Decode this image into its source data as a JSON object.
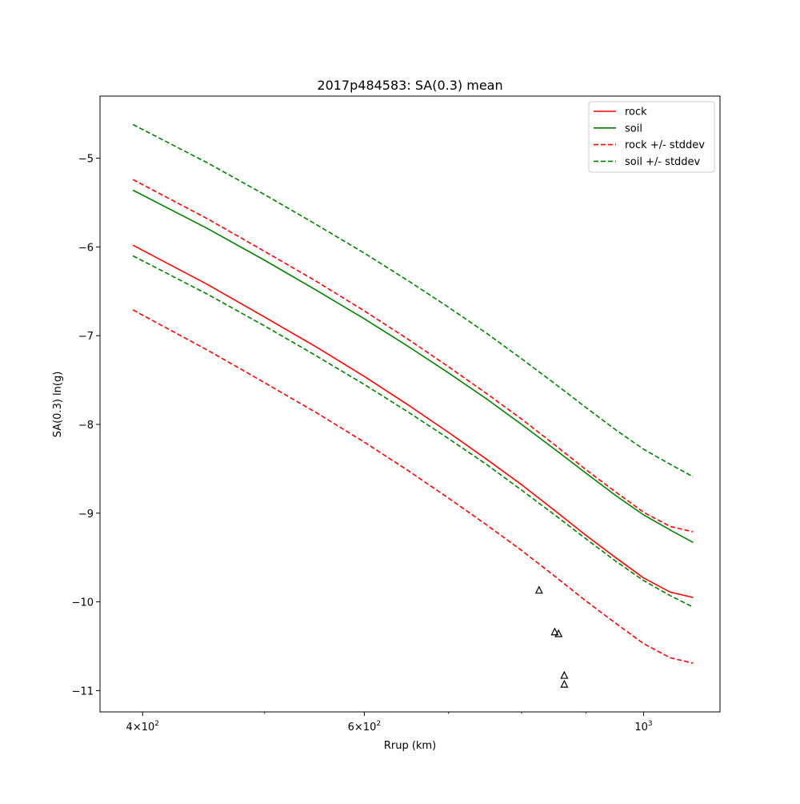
{
  "chart_data": {
    "type": "line",
    "title": "2017p484583: SA(0.3) mean",
    "xlabel": "Rrup (km)",
    "ylabel": "SA(0.3) ln(g)",
    "xscale": "log",
    "xlim": [
      370,
      1150
    ],
    "ylim": [
      -11.24,
      -4.3
    ],
    "grid": false,
    "legend_placement": "upper right",
    "x_major_ticks": [
      {
        "value": 400,
        "base": "4×10",
        "exp": "2"
      },
      {
        "value": 600,
        "base": "6×10",
        "exp": "2"
      },
      {
        "value": 1000,
        "base": "10",
        "exp": "3"
      }
    ],
    "x_minor_ticks": [
      500,
      700,
      800,
      900
    ],
    "y_ticks": [
      {
        "value": -11,
        "label": "−11"
      },
      {
        "value": -10,
        "label": "−10"
      },
      {
        "value": -9,
        "label": "−9"
      },
      {
        "value": -8,
        "label": "−8"
      },
      {
        "value": -7,
        "label": "−7"
      },
      {
        "value": -6,
        "label": "−6"
      },
      {
        "value": -5,
        "label": "−5"
      }
    ],
    "x": [
      393,
      450,
      500,
      550,
      600,
      650,
      700,
      750,
      800,
      850,
      900,
      950,
      1000,
      1050,
      1095
    ],
    "series": [
      {
        "name": "rock",
        "color": "#ff0000",
        "dash": "solid",
        "role": "mean",
        "values": [
          -5.98,
          -6.42,
          -6.79,
          -7.13,
          -7.46,
          -7.78,
          -8.09,
          -8.39,
          -8.68,
          -8.97,
          -9.25,
          -9.5,
          -9.73,
          -9.89,
          -9.95
        ]
      },
      {
        "name": "soil",
        "color": "#008000",
        "dash": "solid",
        "role": "mean",
        "values": [
          -5.36,
          -5.79,
          -6.15,
          -6.49,
          -6.81,
          -7.12,
          -7.42,
          -7.71,
          -8.0,
          -8.28,
          -8.55,
          -8.8,
          -9.02,
          -9.19,
          -9.33
        ]
      },
      {
        "name": "rock +/- stddev",
        "color": "#ff0000",
        "dash": "dashed",
        "role": "plus",
        "values": [
          -5.24,
          -5.68,
          -6.05,
          -6.39,
          -6.72,
          -7.04,
          -7.35,
          -7.65,
          -7.94,
          -8.23,
          -8.51,
          -8.76,
          -8.99,
          -9.15,
          -9.21
        ]
      },
      {
        "name": "",
        "color": "#ff0000",
        "dash": "dashed",
        "role": "minus",
        "values": [
          -6.71,
          -7.16,
          -7.53,
          -7.87,
          -8.2,
          -8.52,
          -8.83,
          -9.13,
          -9.42,
          -9.71,
          -9.99,
          -10.24,
          -10.47,
          -10.63,
          -10.69
        ]
      },
      {
        "name": "soil +/- stddev",
        "color": "#008000",
        "dash": "dashed",
        "role": "plus",
        "values": [
          -4.62,
          -5.05,
          -5.41,
          -5.75,
          -6.07,
          -6.38,
          -6.68,
          -6.97,
          -7.26,
          -7.54,
          -7.81,
          -8.06,
          -8.28,
          -8.45,
          -8.59
        ]
      },
      {
        "name": "",
        "color": "#008000",
        "dash": "dashed",
        "role": "minus",
        "values": [
          -6.1,
          -6.53,
          -6.89,
          -7.23,
          -7.55,
          -7.86,
          -8.16,
          -8.45,
          -8.74,
          -9.02,
          -9.29,
          -9.54,
          -9.76,
          -9.93,
          -10.06
        ]
      }
    ],
    "observations": {
      "marker": "triangle",
      "color": "#000000",
      "points": [
        {
          "x": 826,
          "y": -9.87
        },
        {
          "x": 850,
          "y": -10.34
        },
        {
          "x": 856,
          "y": -10.36
        },
        {
          "x": 865,
          "y": -10.83
        },
        {
          "x": 865,
          "y": -10.93
        }
      ]
    },
    "legend": [
      {
        "label": "rock",
        "color": "#ff0000",
        "dash": "solid"
      },
      {
        "label": "soil",
        "color": "#008000",
        "dash": "solid"
      },
      {
        "label": "rock +/- stddev",
        "color": "#ff0000",
        "dash": "dashed"
      },
      {
        "label": "soil +/- stddev",
        "color": "#008000",
        "dash": "dashed"
      }
    ]
  }
}
